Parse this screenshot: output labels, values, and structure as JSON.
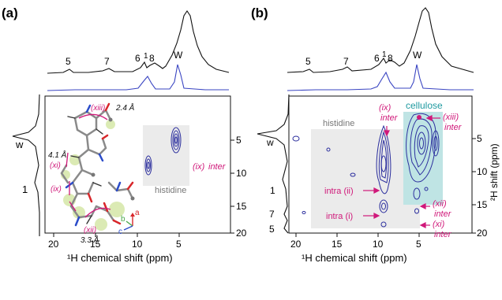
{
  "panel_a": {
    "label": "(a)",
    "peaks": [
      "5",
      "7",
      "6",
      "1",
      "8",
      "W"
    ],
    "side_peaks": [
      "w",
      "1"
    ],
    "x_ticks": [
      "20",
      "15",
      "10",
      "5"
    ],
    "y_ticks": [
      "5",
      "10",
      "15",
      "20"
    ],
    "x_axis_label": "¹H chemical shift (ppm)",
    "region_label": "histidine",
    "cross_peak_label": "(ix)",
    "cross_peak_type": "inter",
    "struct": {
      "xiii": "(xiii)",
      "d_xiii": "2.4 Å",
      "d_41": "4.1 Å",
      "xi": "(xi)",
      "ix": "(ix)",
      "xii": "(xii)",
      "d_33": "3.3 Å",
      "axis_a": "a",
      "axis_b": "b",
      "axis_c": "c"
    }
  },
  "panel_b": {
    "label": "(b)",
    "peaks": [
      "5",
      "7",
      "6",
      "1",
      "8",
      "W"
    ],
    "side_peaks": [
      "w",
      "1",
      "7",
      "5"
    ],
    "x_ticks": [
      "20",
      "15",
      "10",
      "5"
    ],
    "y_ticks": [
      "5",
      "10",
      "15",
      "20"
    ],
    "x_axis_label": "¹H chemical shift (ppm)",
    "y_axis_label": "²H shift (ppm)",
    "region_histidine": "histidine",
    "region_cellulose": "cellulose",
    "annotations": {
      "ix": "(ix)",
      "ix_type": "inter",
      "xiii": "(xiii)",
      "xiii_type": "inter",
      "intra_ii": "intra (ii)",
      "intra_i": "intra (i)",
      "xii": "(xii)",
      "xii_type": "inter",
      "xi": "(xi)",
      "xi_type": "inter"
    }
  },
  "colors": {
    "magenta": "#d0197a",
    "contour": "#2c2f9e",
    "trace_blue": "#3a45c2",
    "cellulose_bg": "#bfe4e4",
    "histidine_bg": "#ebebeb",
    "teal_text": "#1f9aa0"
  }
}
